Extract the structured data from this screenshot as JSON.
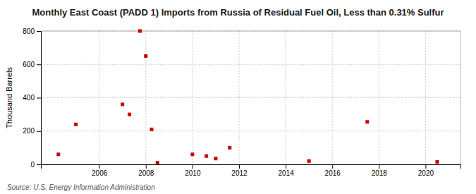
{
  "chart_data": {
    "type": "scatter",
    "title": "Monthly East Coast (PADD 1) Imports from Russia of Residual Fuel Oil, Less than 0.31% Sulfur",
    "ylabel": "Thousand Barrels",
    "source": "Source: U.S. Energy Information Administration",
    "x": [
      2004.25,
      2005.0,
      2007.0,
      2007.3,
      2007.75,
      2008.0,
      2008.25,
      2008.5,
      2010.0,
      2010.6,
      2011.0,
      2011.6,
      2015.0,
      2017.5,
      2020.5
    ],
    "values": [
      60,
      240,
      360,
      300,
      800,
      650,
      210,
      10,
      60,
      50,
      35,
      100,
      20,
      255,
      15
    ],
    "color": "#cc0000",
    "marker": "square",
    "xlim": [
      2003.5,
      2021.5
    ],
    "ylim": [
      0,
      800
    ],
    "xticks": [
      2006,
      2008,
      2010,
      2012,
      2014,
      2016,
      2018,
      2020
    ],
    "yticks": [
      0,
      200,
      400,
      600,
      800
    ],
    "grid": true
  }
}
